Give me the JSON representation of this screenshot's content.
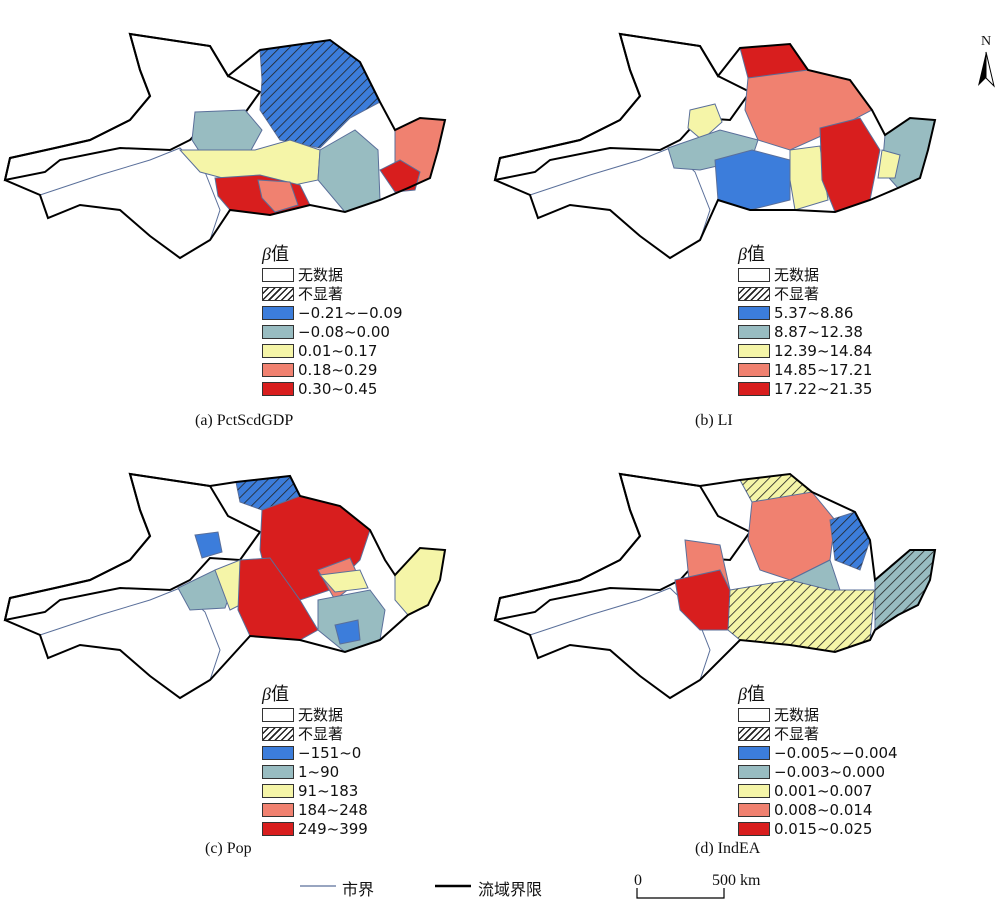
{
  "north_label": "N",
  "legend_title_symbol": "β",
  "legend_title_text": "值",
  "no_data_label": "无数据",
  "not_sig_label": "不显著",
  "colors": {
    "class1": "#3c7ddb",
    "class2": "#98bcc1",
    "class3": "#f5f5a8",
    "class4": "#f08170",
    "class5": "#d81e1e",
    "no_data": "#ffffff",
    "city_line": "#5a6f9a",
    "basin_line": "#000000"
  },
  "panels": [
    {
      "caption": "(a) PctScdGDP",
      "classes": [
        "−0.21~−0.09",
        "−0.08~0.00",
        "0.01~0.17",
        "0.18~0.29",
        "0.30~0.45"
      ]
    },
    {
      "caption": "(b) LI",
      "classes": [
        "5.37~8.86",
        "8.87~12.38",
        "12.39~14.84",
        "14.85~17.21",
        "17.22~21.35"
      ]
    },
    {
      "caption": "(c) Pop",
      "classes": [
        "−151~0",
        "1~90",
        "91~183",
        "184~248",
        "249~399"
      ]
    },
    {
      "caption": "(d) IndEA",
      "classes": [
        "−0.005~−0.004",
        "−0.003~0.000",
        "0.001~0.007",
        "0.008~0.014",
        "0.015~0.025"
      ]
    }
  ],
  "bottom_legend": {
    "city_boundary": "市界",
    "basin_boundary": "流域界限",
    "scale_start": "0",
    "scale_end": "500 km"
  }
}
